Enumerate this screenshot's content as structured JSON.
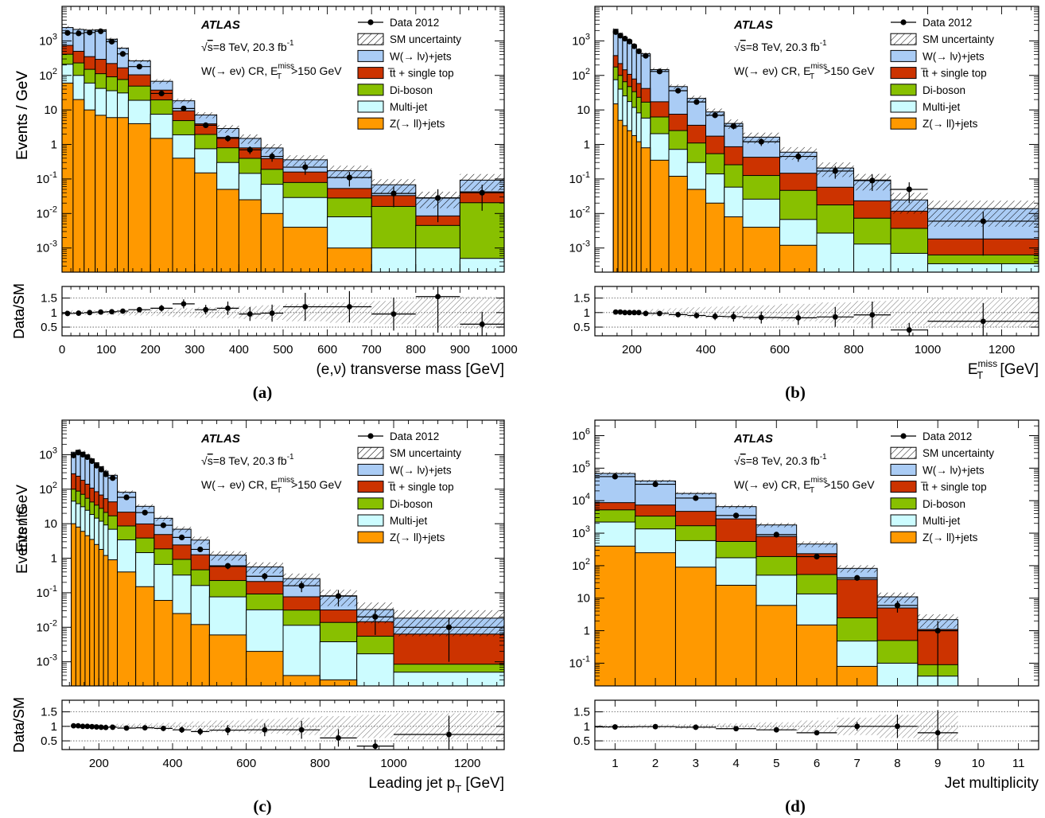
{
  "figure": {
    "panel_labels": [
      "(a)",
      "(b)",
      "(c)",
      "(d)"
    ]
  },
  "legend": {
    "experiment": "ATLAS",
    "energy_lumi_root": "s",
    "energy_lumi_rest": "=8 TeV, 20.3 fb",
    "lumi_power": "-1",
    "region_main": "W(→ eν) CR, E",
    "region_sub": "T",
    "region_sup": "miss",
    "region_cut": ">150 GeV",
    "items": [
      {
        "key": "data",
        "label": "Data 2012",
        "style": "marker"
      },
      {
        "key": "unc",
        "label": "SM uncertainty",
        "style": "hatch"
      },
      {
        "key": "wjets",
        "label": "W(→ lν)+jets",
        "color": "#aaccf5"
      },
      {
        "key": "top",
        "label": "t̅t + single top",
        "color": "#cc3300"
      },
      {
        "key": "diboson",
        "label": "Di-boson",
        "color": "#88c000"
      },
      {
        "key": "multijet",
        "label": "Multi-jet",
        "color": "#ccfcff"
      },
      {
        "key": "zjets",
        "label": "Z(→ ll)+jets",
        "color": "#ff9900"
      }
    ]
  },
  "colors": {
    "wjets": "#aaccf5",
    "top": "#cc3300",
    "diboson": "#88c000",
    "multijet": "#ccfcff",
    "zjets": "#ff9900",
    "frame": "#000000"
  },
  "chart_data": [
    {
      "type": "bar",
      "panel": "(a)",
      "xlabel": "(e,ν) transverse mass [GeV]",
      "ylabel": "Events / GeV",
      "ratio_ylabel": "Data/SM",
      "xlim": [
        0,
        1000
      ],
      "ylim": [
        0.0002,
        10000
      ],
      "yscale": "log",
      "ratio_ylim": [
        0.2,
        1.9
      ],
      "x_ticks": [
        0,
        100,
        200,
        300,
        400,
        500,
        600,
        700,
        800,
        900,
        1000
      ],
      "y_ticks": [
        {
          "v": 0.001,
          "b": "10",
          "e": "-3"
        },
        {
          "v": 0.01,
          "b": "10",
          "e": "-2"
        },
        {
          "v": 0.1,
          "b": "10",
          "e": "-1"
        },
        {
          "v": 1,
          "t": "1"
        },
        {
          "v": 10,
          "t": "10"
        },
        {
          "v": 100,
          "b": "10",
          "e": "2"
        },
        {
          "v": 1000,
          "b": "10",
          "e": "3"
        }
      ],
      "ratio_ticks": [
        "0.5",
        "1",
        "1.5"
      ],
      "edges": [
        0,
        25,
        50,
        75,
        100,
        125,
        150,
        200,
        250,
        300,
        350,
        400,
        450,
        500,
        600,
        700,
        800,
        900,
        1000
      ],
      "series": [
        {
          "key": "zjets",
          "values": [
            60,
            20,
            10,
            7,
            6,
            6,
            4,
            1.5,
            0.4,
            0.15,
            0.05,
            0.025,
            0.01,
            0.004,
            0.001,
            0,
            0,
            0
          ]
        },
        {
          "key": "multijet",
          "values": [
            150,
            80,
            50,
            35,
            30,
            25,
            15,
            6,
            1.5,
            0.6,
            0.25,
            0.12,
            0.06,
            0.025,
            0.007,
            0.001,
            0.001,
            0.0005
          ]
        },
        {
          "key": "diboson",
          "values": [
            200,
            130,
            90,
            70,
            55,
            45,
            30,
            12,
            3,
            1.2,
            0.5,
            0.25,
            0.12,
            0.05,
            0.02,
            0.015,
            0.0035,
            0.02
          ]
        },
        {
          "key": "top",
          "values": [
            330,
            270,
            200,
            180,
            130,
            90,
            55,
            18,
            4.5,
            2,
            0.8,
            0.4,
            0.2,
            0.08,
            0.025,
            0.017,
            0.004,
            0.022
          ]
        },
        {
          "key": "wjets",
          "values": [
            1700,
            1650,
            1700,
            1800,
            900,
            450,
            160,
            30,
            9,
            3.2,
            1.3,
            0.7,
            0.4,
            0.2,
            0.12,
            0.035,
            0.02,
            0.05
          ]
        }
      ],
      "data_points": [
        1700,
        1650,
        1750,
        1900,
        950,
        420,
        180,
        30,
        11,
        3.6,
        1.5,
        0.7,
        0.45,
        0.22,
        0.11,
        0.038,
        0.028,
        0.04
      ],
      "data_errors": [
        0.05,
        0.05,
        0.05,
        0.05,
        0.06,
        0.07,
        0.06,
        0.1,
        0.12,
        0.15,
        0.2,
        0.25,
        0.3,
        0.4,
        0.45,
        0.6,
        0.8,
        0.7
      ],
      "unc_band": [
        0.1,
        0.1,
        0.1,
        0.1,
        0.1,
        0.1,
        0.1,
        0.15,
        0.15,
        0.2,
        0.25,
        0.3,
        0.3,
        0.35,
        0.4,
        0.45,
        0.5,
        0.5
      ],
      "ratio": [
        0.97,
        0.98,
        1.0,
        1.02,
        1.03,
        1.05,
        1.1,
        1.15,
        1.3,
        1.1,
        1.15,
        0.95,
        0.98,
        1.2,
        1.2,
        0.95,
        1.55,
        0.6
      ],
      "ratio_band": [
        0.08,
        0.08,
        0.08,
        0.08,
        0.09,
        0.1,
        0.1,
        0.12,
        0.15,
        0.18,
        0.2,
        0.22,
        0.25,
        0.3,
        0.35,
        0.4,
        0.5,
        0.55
      ]
    },
    {
      "type": "bar",
      "panel": "(b)",
      "xlabel": "E",
      "xlabel_sub": "T",
      "xlabel_sup": "miss",
      "xlabel_unit": " [GeV]",
      "ylabel": "Events / GeV",
      "ratio_ylabel": "Data/SM",
      "xlim": [
        100,
        1300
      ],
      "ylim": [
        0.0002,
        10000
      ],
      "yscale": "log",
      "ratio_ylim": [
        0.2,
        1.9
      ],
      "x_ticks": [
        200,
        400,
        600,
        800,
        1000,
        1200
      ],
      "y_ticks": [
        {
          "v": 0.001,
          "b": "10",
          "e": "-3"
        },
        {
          "v": 0.01,
          "b": "10",
          "e": "-2"
        },
        {
          "v": 0.1,
          "b": "10",
          "e": "-1"
        },
        {
          "v": 1,
          "t": "1"
        },
        {
          "v": 10,
          "t": "10"
        },
        {
          "v": 100,
          "b": "10",
          "e": "2"
        },
        {
          "v": 1000,
          "b": "10",
          "e": "3"
        }
      ],
      "ratio_ticks": [
        "0.5",
        "1",
        "1.5"
      ],
      "edges": [
        100,
        150,
        162.5,
        175,
        187.5,
        200,
        212.5,
        225,
        250,
        300,
        350,
        400,
        450,
        500,
        600,
        700,
        800,
        900,
        1000,
        1300
      ],
      "series": [
        {
          "key": "zjets",
          "values": [
            0,
            15,
            5,
            3.5,
            2.5,
            1.8,
            1.2,
            0.8,
            0.35,
            0.12,
            0.05,
            0.02,
            0.008,
            0.004,
            0.0012,
            0.0002,
            0.0001,
            0.0001,
            0.0001
          ]
        },
        {
          "key": "multijet",
          "values": [
            0,
            60,
            35,
            22,
            15,
            10,
            7,
            5,
            1.7,
            0.6,
            0.25,
            0.12,
            0.05,
            0.022,
            0.0055,
            0.0025,
            0.0012,
            0.0006,
            0.00025
          ]
        },
        {
          "key": "diboson",
          "values": [
            0,
            100,
            60,
            40,
            30,
            22,
            15,
            11,
            4.2,
            1.8,
            0.8,
            0.4,
            0.2,
            0.1,
            0.04,
            0.015,
            0.006,
            0.003,
            0.00028
          ]
        },
        {
          "key": "top",
          "values": [
            0,
            200,
            120,
            80,
            60,
            45,
            35,
            25,
            11,
            5,
            2.5,
            1.2,
            0.6,
            0.3,
            0.1,
            0.04,
            0.016,
            0.008,
            0.0012
          ]
        },
        {
          "key": "wjets",
          "values": [
            0,
            1800,
            1400,
            1150,
            950,
            700,
            500,
            380,
            130,
            40,
            18,
            7,
            3.2,
            1.2,
            0.45,
            0.15,
            0.07,
            0.013,
            0.012
          ]
        }
      ],
      "data_points": [
        null,
        1800,
        1420,
        1160,
        960,
        700,
        500,
        370,
        130,
        36,
        17,
        7,
        3.4,
        1.2,
        0.45,
        0.17,
        0.09,
        0.05,
        0.006
      ],
      "data_errors": [
        null,
        0.05,
        0.05,
        0.05,
        0.05,
        0.05,
        0.05,
        0.06,
        0.07,
        0.1,
        0.12,
        0.15,
        0.2,
        0.25,
        0.3,
        0.4,
        0.5,
        0.6,
        0.9
      ],
      "unc_band": [
        0,
        0.1,
        0.1,
        0.1,
        0.1,
        0.1,
        0.1,
        0.1,
        0.12,
        0.15,
        0.2,
        0.25,
        0.3,
        0.35,
        0.4,
        0.45,
        0.5,
        0.6,
        0.7
      ],
      "ratio": [
        null,
        1.02,
        1.02,
        1.0,
        1.0,
        1.0,
        1.0,
        0.97,
        0.97,
        0.93,
        0.9,
        0.87,
        0.86,
        0.83,
        0.82,
        0.85,
        0.92,
        0.4,
        0.7
      ],
      "ratio_band": [
        null,
        0.08,
        0.08,
        0.08,
        0.08,
        0.09,
        0.09,
        0.1,
        0.12,
        0.15,
        0.18,
        0.2,
        0.22,
        0.25,
        0.3,
        0.35,
        0.4,
        0.45,
        0.5
      ]
    },
    {
      "type": "bar",
      "panel": "(c)",
      "xlabel": "Leading jet p",
      "xlabel_sub": "T",
      "xlabel_unit": " [GeV]",
      "ylabel": "Events / GeV",
      "ratio_ylabel": "Data/SM",
      "xlim": [
        100,
        1300
      ],
      "ylim": [
        0.0002,
        10000
      ],
      "yscale": "log",
      "ratio_ylim": [
        0.2,
        1.9
      ],
      "x_ticks": [
        200,
        400,
        600,
        800,
        1000,
        1200
      ],
      "y_ticks": [
        {
          "v": 0.001,
          "b": "10",
          "e": "-3"
        },
        {
          "v": 0.01,
          "b": "10",
          "e": "-2"
        },
        {
          "v": 0.1,
          "b": "10",
          "e": "-1"
        },
        {
          "v": 1,
          "t": "1"
        },
        {
          "v": 10,
          "t": "10"
        },
        {
          "v": 100,
          "b": "10",
          "e": "2"
        },
        {
          "v": 1000,
          "b": "10",
          "e": "3"
        }
      ],
      "ratio_ticks": [
        "0.5",
        "1",
        "1.5"
      ],
      "edges": [
        125,
        137.5,
        150,
        162.5,
        175,
        187.5,
        200,
        212.5,
        225,
        250,
        300,
        350,
        400,
        450,
        500,
        600,
        700,
        800,
        900,
        1000,
        1300
      ],
      "series": [
        {
          "key": "zjets",
          "values": [
            10,
            8,
            6,
            4.5,
            3.5,
            2.5,
            1.8,
            1.2,
            0.9,
            0.4,
            0.15,
            0.06,
            0.025,
            0.012,
            0.006,
            0.002,
            0.0004,
            0.0003,
            0.0002,
            0.0002
          ]
        },
        {
          "key": "multijet",
          "values": [
            35,
            30,
            25,
            20,
            15,
            12,
            10,
            8,
            6,
            3,
            1.3,
            0.6,
            0.3,
            0.15,
            0.07,
            0.03,
            0.011,
            0.0035,
            0.0015,
            0.0003
          ]
        },
        {
          "key": "diboson",
          "values": [
            55,
            50,
            40,
            30,
            24,
            20,
            16,
            12,
            10,
            5.2,
            2.4,
            1.2,
            0.6,
            0.3,
            0.15,
            0.06,
            0.02,
            0.01,
            0.0038,
            0.00035
          ]
        },
        {
          "key": "top",
          "values": [
            180,
            150,
            110,
            85,
            65,
            50,
            40,
            32,
            26,
            13,
            6,
            3,
            1.5,
            0.8,
            0.35,
            0.12,
            0.045,
            0.018,
            0.009,
            0.0055
          ]
        },
        {
          "key": "wjets",
          "values": [
            900,
            1100,
            1000,
            850,
            650,
            500,
            380,
            280,
            210,
            60,
            22,
            9.5,
            4.5,
            2.1,
            0.65,
            0.35,
            0.18,
            0.05,
            0.018,
            0.012
          ]
        }
      ],
      "data_points": [
        950,
        1150,
        1000,
        850,
        650,
        480,
        370,
        270,
        210,
        58,
        21,
        9,
        4,
        1.8,
        0.6,
        0.3,
        0.16,
        0.08,
        0.02,
        0.01
      ],
      "data_errors": [
        0.05,
        0.05,
        0.05,
        0.05,
        0.05,
        0.05,
        0.05,
        0.05,
        0.06,
        0.07,
        0.08,
        0.1,
        0.12,
        0.15,
        0.2,
        0.25,
        0.35,
        0.5,
        0.7,
        0.9
      ],
      "unc_band": [
        0.1,
        0.1,
        0.1,
        0.1,
        0.1,
        0.1,
        0.1,
        0.1,
        0.1,
        0.12,
        0.14,
        0.17,
        0.2,
        0.25,
        0.3,
        0.35,
        0.4,
        0.5,
        0.6,
        0.7
      ],
      "ratio": [
        1.02,
        1.02,
        1.0,
        1.0,
        0.99,
        0.98,
        0.97,
        0.96,
        0.97,
        0.94,
        0.95,
        0.93,
        0.88,
        0.82,
        0.87,
        0.88,
        0.88,
        0.6,
        0.32,
        0.72
      ],
      "ratio_band": [
        0.07,
        0.07,
        0.07,
        0.07,
        0.07,
        0.07,
        0.07,
        0.08,
        0.08,
        0.09,
        0.1,
        0.12,
        0.14,
        0.17,
        0.2,
        0.25,
        0.3,
        0.35,
        0.4,
        0.45
      ]
    },
    {
      "type": "bar",
      "panel": "(d)",
      "xlabel": "Jet multiplicity",
      "ylabel": "Events",
      "ratio_ylabel": "Data/SM",
      "xlim": [
        0.5,
        11.5
      ],
      "ylim": [
        0.02,
        3000000
      ],
      "yscale": "log",
      "ratio_ylim": [
        0.2,
        1.9
      ],
      "x_ticks": [
        1,
        2,
        3,
        4,
        5,
        6,
        7,
        8,
        9,
        10,
        11
      ],
      "y_ticks": [
        {
          "v": 0.1,
          "b": "10",
          "e": "-1"
        },
        {
          "v": 1,
          "t": "1"
        },
        {
          "v": 10,
          "t": "10"
        },
        {
          "v": 100,
          "b": "10",
          "e": "2"
        },
        {
          "v": 1000,
          "b": "10",
          "e": "3"
        },
        {
          "v": 10000,
          "b": "10",
          "e": "4"
        },
        {
          "v": 100000,
          "b": "10",
          "e": "5"
        },
        {
          "v": 1000000,
          "b": "10",
          "e": "6"
        }
      ],
      "ratio_ticks": [
        "0.5",
        "1",
        "1.5"
      ],
      "edges": [
        0.5,
        1.5,
        2.5,
        3.5,
        4.5,
        5.5,
        6.5,
        7.5,
        8.5,
        9.5,
        10.5,
        11.5
      ],
      "series": [
        {
          "key": "zjets",
          "values": [
            400,
            250,
            90,
            25,
            6,
            1.5,
            0.08,
            0.02,
            0.02,
            0,
            0
          ]
        },
        {
          "key": "multijet",
          "values": [
            1800,
            1100,
            500,
            150,
            45,
            12,
            0.4,
            0.08,
            0.02,
            0,
            0
          ]
        },
        {
          "key": "diboson",
          "values": [
            3000,
            2000,
            1100,
            380,
            140,
            40,
            2,
            0.4,
            0.05,
            0,
            0
          ]
        },
        {
          "key": "top",
          "values": [
            3500,
            4000,
            3000,
            2200,
            600,
            180,
            35,
            4.5,
            1,
            0,
            0
          ]
        },
        {
          "key": "wjets",
          "values": [
            60000,
            33000,
            12000,
            3800,
            1000,
            230,
            45,
            6,
            1.1,
            0,
            0
          ]
        }
      ],
      "data_points": [
        55000,
        32000,
        12000,
        3500,
        900,
        190,
        42,
        6,
        1,
        null,
        null
      ],
      "data_errors": [
        0.02,
        0.02,
        0.03,
        0.04,
        0.05,
        0.08,
        0.15,
        0.4,
        1.0,
        null,
        null
      ],
      "unc_band": [
        0.1,
        0.1,
        0.1,
        0.12,
        0.15,
        0.2,
        0.25,
        0.35,
        0.45,
        0,
        0
      ],
      "ratio": [
        0.98,
        0.99,
        0.97,
        0.92,
        0.88,
        0.78,
        1.0,
        1.0,
        0.78,
        null,
        null
      ],
      "ratio_band": [
        0.06,
        0.07,
        0.08,
        0.1,
        0.14,
        0.2,
        0.3,
        0.4,
        0.5,
        null,
        null
      ]
    }
  ]
}
